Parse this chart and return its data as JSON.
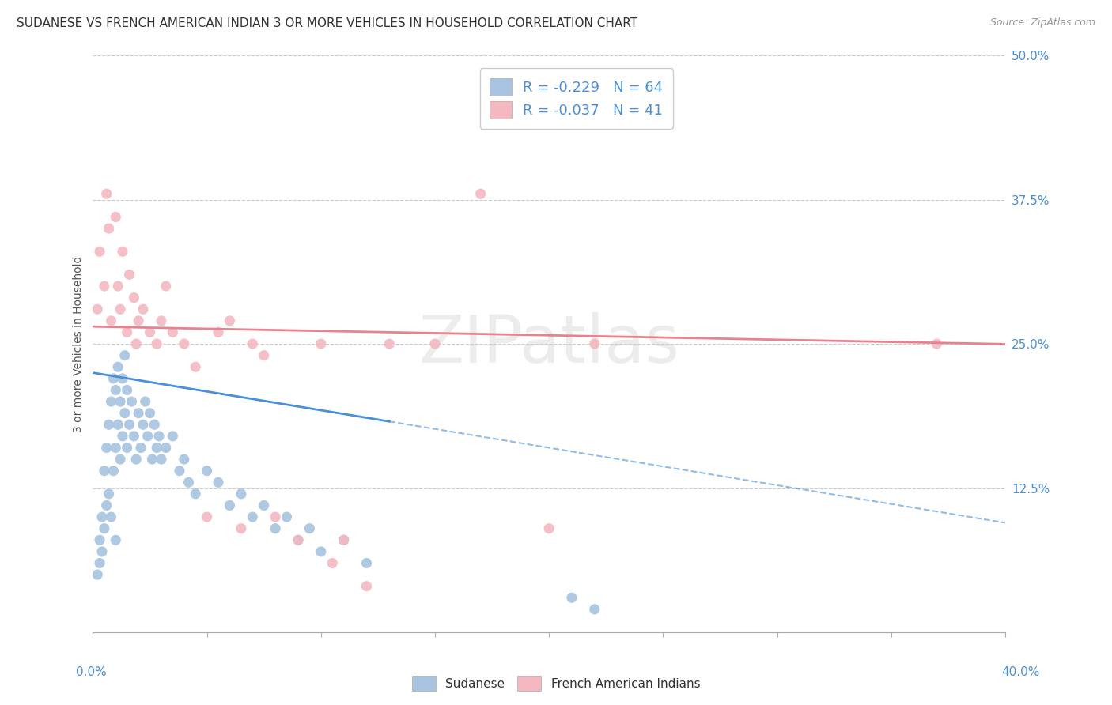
{
  "title": "SUDANESE VS FRENCH AMERICAN INDIAN 3 OR MORE VEHICLES IN HOUSEHOLD CORRELATION CHART",
  "source": "Source: ZipAtlas.com",
  "ylabel": "3 or more Vehicles in Household",
  "xlim": [
    0.0,
    40.0
  ],
  "ylim": [
    0.0,
    50.0
  ],
  "yticks": [
    12.5,
    25.0,
    37.5,
    50.0
  ],
  "blue_R": -0.229,
  "blue_N": 64,
  "pink_R": -0.037,
  "pink_N": 41,
  "blue_color": "#a8c4e0",
  "blue_line_color": "#4a90d9",
  "pink_color": "#f4b8c1",
  "pink_line_color": "#e8828e",
  "text_color": "#4a90d9",
  "watermark": "ZIPatlas",
  "blue_scatter_x": [
    0.2,
    0.3,
    0.3,
    0.4,
    0.4,
    0.5,
    0.5,
    0.6,
    0.6,
    0.7,
    0.7,
    0.8,
    0.8,
    0.9,
    0.9,
    1.0,
    1.0,
    1.0,
    1.1,
    1.1,
    1.2,
    1.2,
    1.3,
    1.3,
    1.4,
    1.4,
    1.5,
    1.5,
    1.6,
    1.7,
    1.8,
    1.9,
    2.0,
    2.1,
    2.2,
    2.3,
    2.4,
    2.5,
    2.6,
    2.7,
    2.8,
    2.9,
    3.0,
    3.2,
    3.5,
    3.8,
    4.0,
    4.2,
    4.5,
    5.0,
    5.5,
    6.0,
    6.5,
    7.0,
    7.5,
    8.0,
    8.5,
    9.0,
    9.5,
    10.0,
    11.0,
    12.0,
    21.0,
    22.0
  ],
  "blue_scatter_y": [
    5.0,
    6.0,
    8.0,
    7.0,
    10.0,
    9.0,
    14.0,
    11.0,
    16.0,
    12.0,
    18.0,
    10.0,
    20.0,
    14.0,
    22.0,
    8.0,
    16.0,
    21.0,
    18.0,
    23.0,
    15.0,
    20.0,
    17.0,
    22.0,
    19.0,
    24.0,
    16.0,
    21.0,
    18.0,
    20.0,
    17.0,
    15.0,
    19.0,
    16.0,
    18.0,
    20.0,
    17.0,
    19.0,
    15.0,
    18.0,
    16.0,
    17.0,
    15.0,
    16.0,
    17.0,
    14.0,
    15.0,
    13.0,
    12.0,
    14.0,
    13.0,
    11.0,
    12.0,
    10.0,
    11.0,
    9.0,
    10.0,
    8.0,
    9.0,
    7.0,
    8.0,
    6.0,
    3.0,
    2.0
  ],
  "pink_scatter_x": [
    0.2,
    0.3,
    0.5,
    0.6,
    0.7,
    0.8,
    1.0,
    1.1,
    1.2,
    1.3,
    1.5,
    1.6,
    1.8,
    1.9,
    2.0,
    2.2,
    2.5,
    2.8,
    3.0,
    3.2,
    3.5,
    4.0,
    4.5,
    5.0,
    5.5,
    6.0,
    6.5,
    7.0,
    7.5,
    8.0,
    9.0,
    10.0,
    10.5,
    11.0,
    12.0,
    13.0,
    15.0,
    17.0,
    20.0,
    22.0,
    37.0
  ],
  "pink_scatter_y": [
    28.0,
    33.0,
    30.0,
    38.0,
    35.0,
    27.0,
    36.0,
    30.0,
    28.0,
    33.0,
    26.0,
    31.0,
    29.0,
    25.0,
    27.0,
    28.0,
    26.0,
    25.0,
    27.0,
    30.0,
    26.0,
    25.0,
    23.0,
    10.0,
    26.0,
    27.0,
    9.0,
    25.0,
    24.0,
    10.0,
    8.0,
    25.0,
    6.0,
    8.0,
    4.0,
    25.0,
    25.0,
    38.0,
    9.0,
    25.0,
    25.0
  ],
  "blue_line_intercept": 22.5,
  "blue_line_slope": -0.325,
  "blue_solid_end_x": 13.0,
  "pink_line_intercept": 26.5,
  "pink_line_slope": -0.038,
  "title_fontsize": 11,
  "axis_label_fontsize": 10,
  "tick_fontsize": 11,
  "legend_fontsize": 13
}
